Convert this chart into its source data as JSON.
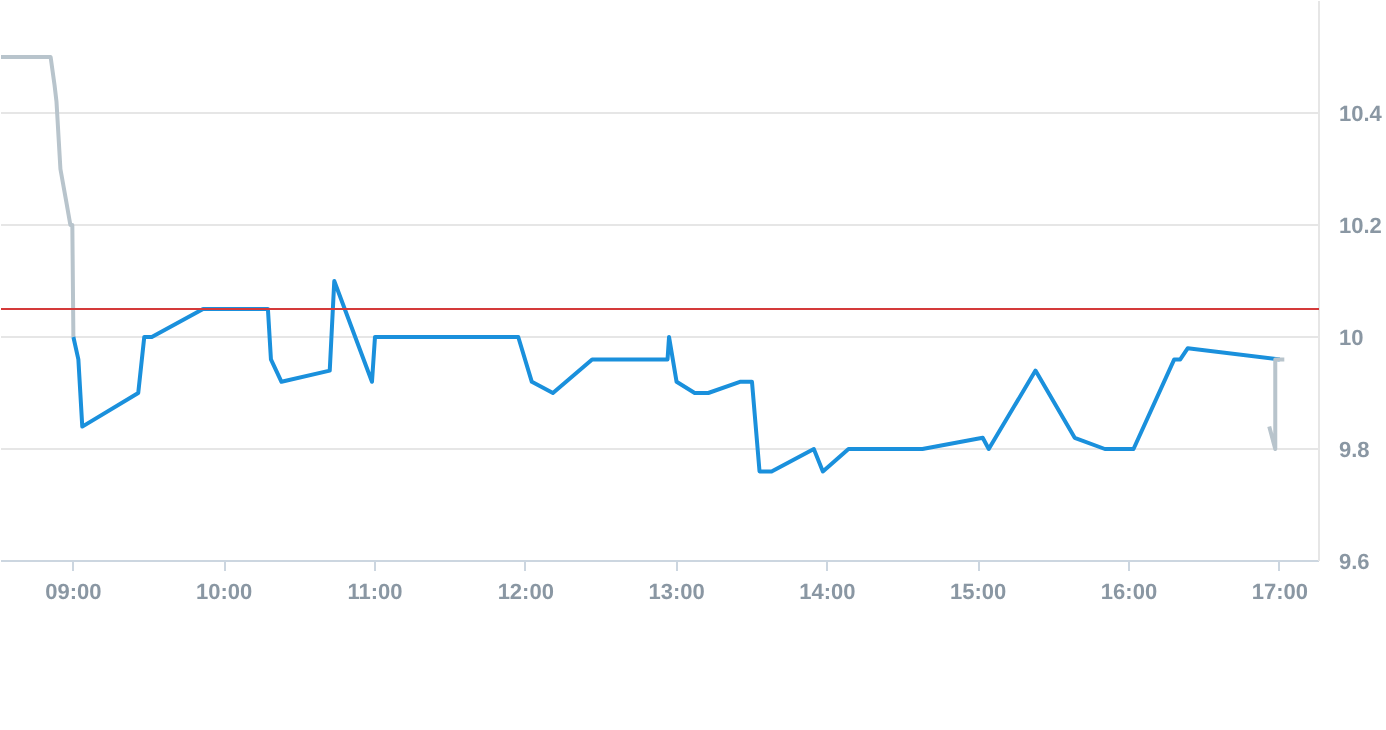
{
  "chart_data": {
    "type": "line",
    "xlim": [
      8.52,
      17.26
    ],
    "ylim": [
      9.6,
      10.6
    ],
    "xticks": [
      {
        "value": 9,
        "label": "09:00"
      },
      {
        "value": 10,
        "label": "10:00"
      },
      {
        "value": 11,
        "label": "11:00"
      },
      {
        "value": 12,
        "label": "12:00"
      },
      {
        "value": 13,
        "label": "13:00"
      },
      {
        "value": 14,
        "label": "14:00"
      },
      {
        "value": 15,
        "label": "15:00"
      },
      {
        "value": 16,
        "label": "16:00"
      },
      {
        "value": 17,
        "label": "17:00"
      }
    ],
    "yticks": [
      9.6,
      9.8,
      10,
      10.2,
      10.4
    ],
    "grid": "y",
    "marker": "none",
    "line_style": "solid",
    "ref_lines": [
      {
        "axis": "y",
        "value": 10.05,
        "label": null,
        "color": "#d43a3a"
      }
    ],
    "series": [
      {
        "color": "#b8c4cc",
        "x": [
          8.52,
          8.849,
          8.875,
          8.888,
          8.914,
          8.954,
          8.98,
          8.993,
          9.0
        ],
        "values": [
          10.5,
          10.5,
          10.45,
          10.42,
          10.3,
          10.24,
          10.2,
          10.2,
          10.0
        ]
      },
      {
        "color": "#1a90dc",
        "x": [
          9.0,
          9.033,
          9.059,
          9.43,
          9.47,
          9.52,
          9.86,
          10.29,
          10.31,
          10.38,
          10.7,
          10.73,
          10.98,
          11.0,
          11.95,
          12.04,
          12.18,
          12.44,
          12.94,
          12.95,
          13.0,
          13.12,
          13.21,
          13.42,
          13.5,
          13.55,
          13.63,
          13.91,
          13.97,
          14.14,
          14.63,
          15.03,
          15.07,
          15.38,
          15.64,
          15.84,
          16.03,
          16.3,
          16.34,
          16.39,
          17.0
        ],
        "values": [
          10.0,
          9.96,
          9.84,
          9.9,
          10.0,
          10.0,
          10.05,
          10.05,
          9.96,
          9.92,
          9.94,
          10.1,
          9.92,
          10.0,
          10.0,
          9.92,
          9.9,
          9.96,
          9.96,
          10.0,
          9.92,
          9.9,
          9.9,
          9.92,
          9.92,
          9.76,
          9.76,
          9.8,
          9.76,
          9.8,
          9.8,
          9.82,
          9.8,
          9.94,
          9.82,
          9.8,
          9.8,
          9.96,
          9.96,
          9.98,
          9.96
        ]
      },
      {
        "color": "#b8c4cc",
        "x": [
          16.93,
          16.97,
          16.97,
          17.03
        ],
        "values": [
          9.84,
          9.8,
          9.96,
          9.96
        ]
      }
    ]
  }
}
